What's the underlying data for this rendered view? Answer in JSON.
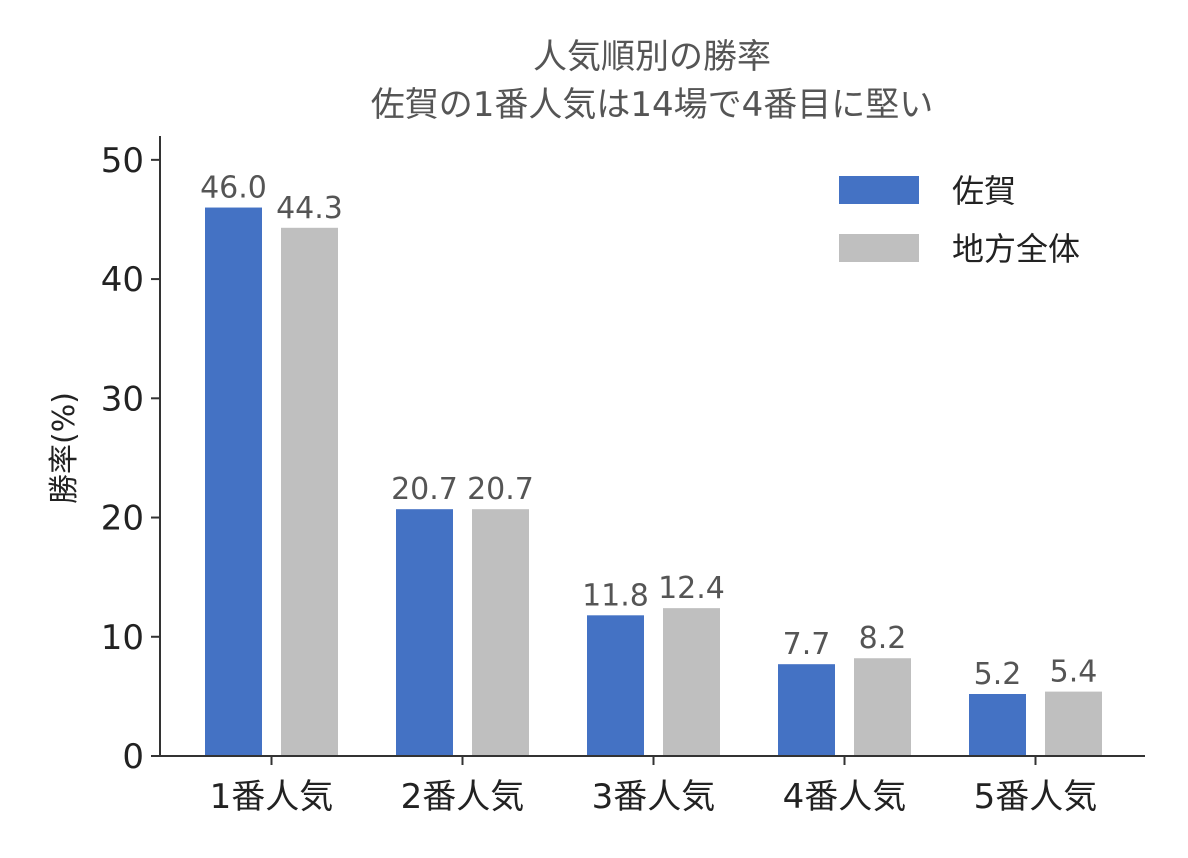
{
  "chart_data": {
    "type": "bar",
    "title": "人気順別の勝率",
    "subtitle": "佐賀の1番人気は14場で4番目に堅い",
    "xlabel": "",
    "ylabel": "勝率(%)",
    "categories": [
      "1番人気",
      "2番人気",
      "3番人気",
      "4番人気",
      "5番人気"
    ],
    "ylim": [
      0,
      52
    ],
    "yticks": [
      0,
      10,
      20,
      30,
      40,
      50
    ],
    "grid": false,
    "legend_position": "top-right",
    "series": [
      {
        "name": "佐賀",
        "color": "#4472c4",
        "values": [
          46.0,
          20.7,
          11.8,
          7.7,
          5.2
        ],
        "labels": [
          "46.0",
          "20.7",
          "11.8",
          "7.7",
          "5.2"
        ]
      },
      {
        "name": "地方全体",
        "color": "#bfbfbf",
        "values": [
          44.3,
          20.7,
          12.4,
          8.2,
          5.4
        ],
        "labels": [
          "44.3",
          "20.7",
          "12.4",
          "8.2",
          "5.4"
        ]
      }
    ]
  }
}
